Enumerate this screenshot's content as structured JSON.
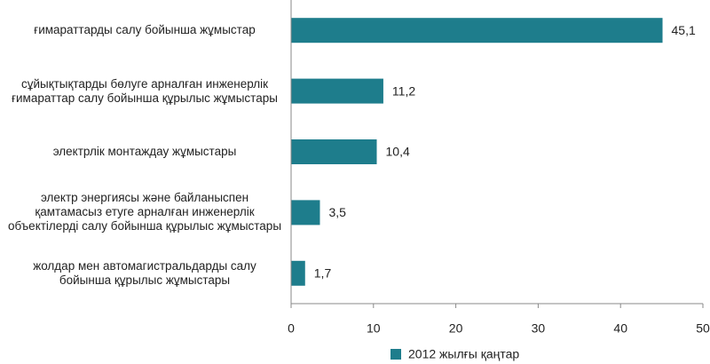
{
  "chart_data": {
    "type": "bar",
    "orientation": "horizontal",
    "categories": [
      "ғимараттарды салу бойынша жұмыстар",
      "сұйықтықтарды бөлуге арналған инженерлік ғимараттар салу бойынша құрылыс жұмыстары",
      "электрлік монтаждау жұмыстары",
      "электр энергиясы және байланыспен қамтамасыз етуге арналған инженерлік объектілерді салу бойынша құрылыс жұмыстары",
      "жолдар мен автомагистральдарды салу бойынша құрылыс жұмыстары"
    ],
    "series": [
      {
        "name": "2012 жылғы қаңтар",
        "color": "#1e7d8c",
        "values": [
          45.1,
          11.2,
          10.4,
          3.5,
          1.7
        ],
        "value_labels": [
          "45,1",
          "11,2",
          "10,4",
          "3,5",
          "1,7"
        ]
      }
    ],
    "xlim": [
      0,
      50
    ],
    "xticks": [
      0,
      10,
      20,
      30,
      40,
      50
    ],
    "legend": "bottom"
  }
}
